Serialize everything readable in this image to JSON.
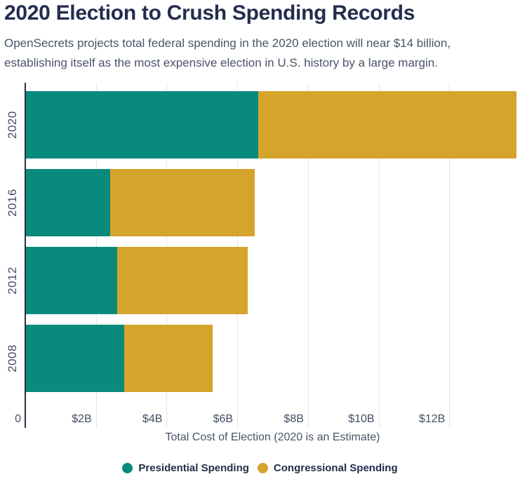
{
  "header": {
    "title": "2020 Election to Crush Spending Records",
    "subtitle_line1": "OpenSecrets projects total federal spending in the 2020 election will near $14 billion,",
    "subtitle_line2": "establishing itself as the most expensive election in U.S. history by a large margin."
  },
  "chart_data": {
    "type": "bar",
    "orientation": "horizontal",
    "stacked": true,
    "title": "2020 Election to Crush Spending Records",
    "categories": [
      "2020",
      "2016",
      "2012",
      "2008"
    ],
    "series": [
      {
        "name": "Presidential Spending",
        "color": "#0A8A7D",
        "values": [
          6.6,
          2.4,
          2.6,
          2.8
        ]
      },
      {
        "name": "Congressional Spending",
        "color": "#D5A42C",
        "values": [
          7.3,
          4.1,
          3.7,
          2.5
        ]
      }
    ],
    "xlabel": "Total Cost of Election (2020 is an Estimate)",
    "ylabel": "",
    "xlim": [
      0,
      14
    ],
    "xticks": [
      {
        "value": 0,
        "label": "0"
      },
      {
        "value": 2,
        "label": "$2B"
      },
      {
        "value": 4,
        "label": "$4B"
      },
      {
        "value": 6,
        "label": "$6B"
      },
      {
        "value": 8,
        "label": "$8B"
      },
      {
        "value": 10,
        "label": "$10B"
      },
      {
        "value": 12,
        "label": "$12B"
      }
    ],
    "grid": true,
    "legend_position": "bottom"
  },
  "colors": {
    "title_text": "#242D4E",
    "body_text": "#4A5468",
    "axis_text": "#444E64",
    "axis_line": "#272E40",
    "gridline": "#E4E5E9",
    "background": "#FFFFFF"
  }
}
